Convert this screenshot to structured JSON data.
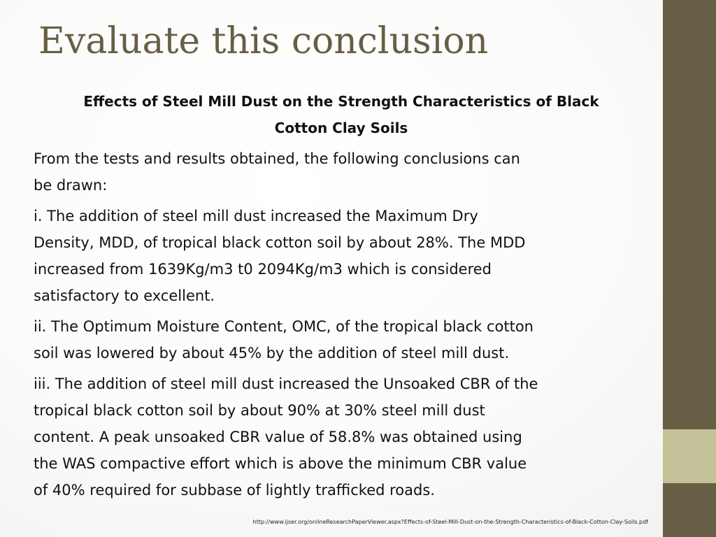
{
  "slide": {
    "title": "Evaluate this conclusion",
    "subtitle": "Effects of Steel Mill Dust on the Strength Characteristics of Black\nCotton Clay Soils",
    "paragraphs": [
      "From the tests and results obtained, the following conclusions can\nbe drawn:",
      "i. The addition of steel mill dust increased the Maximum Dry\nDensity, MDD, of tropical black cotton soil by about 28%. The MDD\nincreased from 1639Kg/m3 t0 2094Kg/m3 which is considered\nsatisfactory to excellent.",
      "ii. The Optimum Moisture Content, OMC, of the tropical black cotton\nsoil was lowered by about 45% by the addition of steel mill dust.",
      "iii. The addition of steel mill dust increased the Unsoaked CBR of the\ntropical black cotton soil by about 90% at 30% steel mill dust\ncontent. A peak unsoaked CBR value of 58.8% was obtained using\nthe WAS compactive effort which is above the minimum CBR value\nof 40% required for subbase of lightly trafficked roads."
    ],
    "source_url": "http://www.ijser.org/onlineResearchPaperViewer.aspx?Effects-of-Steel-Mill-Dust-on-the-Strength-Characteristics-of-Black-Cotton-Clay-Soils.pdf"
  },
  "colors": {
    "title": "#675e46",
    "side_bar": "#675e46",
    "side_accent": "#c5c29a"
  }
}
